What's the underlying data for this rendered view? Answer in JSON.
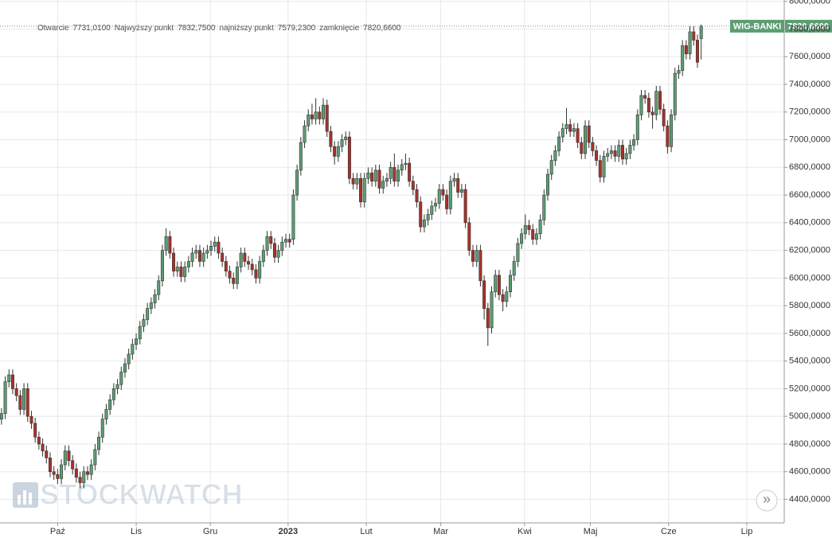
{
  "chart_data": {
    "type": "candlestick",
    "header": [
      {
        "label": "Otwarcie",
        "text": "7731,0100"
      },
      {
        "label": "Najwyższy punkt",
        "text": "7832,7500"
      },
      {
        "label": "najniższy punkt",
        "text": "7579,2300"
      },
      {
        "label": "zamknięcie",
        "text": "7820,6600"
      }
    ],
    "watermark": "STOCKWATCH",
    "scroll_button": "»",
    "up_color": "#5b9e73",
    "down_color": "#a8322a",
    "grid": true,
    "categories": [
      null,
      null,
      null,
      null,
      null,
      null,
      null,
      null,
      null,
      null,
      null,
      null,
      null,
      null,
      null,
      null,
      null,
      null,
      null,
      null,
      null,
      null,
      null,
      null,
      null,
      null,
      null,
      null,
      null,
      null,
      null,
      null,
      null,
      null,
      null,
      null,
      null,
      null,
      null,
      null,
      null,
      null,
      null,
      null,
      null,
      null,
      null,
      null,
      null,
      null,
      null,
      null,
      null,
      null,
      null,
      null,
      null,
      null,
      null,
      null,
      null,
      null,
      null,
      null,
      null,
      null,
      null,
      null,
      null,
      null,
      null,
      null,
      null,
      null,
      null,
      null,
      null,
      null,
      null,
      null,
      null,
      null,
      null,
      null,
      null,
      null,
      null,
      null,
      null,
      null,
      null,
      null,
      null,
      null,
      null,
      null,
      null,
      null,
      null,
      null,
      null,
      null,
      null,
      null,
      null,
      null,
      null,
      null,
      null,
      null,
      null,
      null,
      null,
      null,
      null,
      null,
      null,
      null,
      null,
      null,
      null,
      null,
      null,
      null,
      null,
      null,
      null,
      null,
      null,
      null,
      null,
      null,
      null,
      null,
      null,
      null,
      null,
      null,
      null,
      null,
      null,
      null,
      null,
      null,
      null,
      null,
      null,
      null,
      null,
      null,
      null,
      null,
      null,
      null,
      null,
      null,
      null,
      null,
      null,
      null,
      null,
      null,
      null,
      null,
      null,
      null,
      null,
      null,
      null,
      null,
      null,
      null,
      null,
      null,
      null,
      null,
      null,
      null,
      null,
      null,
      null,
      null,
      null,
      null,
      null,
      null,
      null,
      null
    ],
    "series": [
      {
        "name": "WIG-BANKI",
        "last_value_label": "7820,6600",
        "color": "#5b9e73",
        "open": [
          4980,
          5020,
          5250,
          5300,
          5200,
          5150,
          5050,
          5200,
          5000,
          4950,
          4850,
          4800,
          4750,
          4700,
          4600,
          4580,
          4550,
          4650,
          4750,
          4680,
          4620,
          4560,
          4520,
          4600,
          4580,
          4650,
          4760,
          4850,
          4980,
          5050,
          5120,
          5200,
          5230,
          5320,
          5380,
          5450,
          5520,
          5560,
          5650,
          5700,
          5780,
          5820,
          5880,
          5980,
          6200,
          6300,
          6180,
          6050,
          6080,
          6010,
          6080,
          6120,
          6180,
          6200,
          6120,
          6180,
          6200,
          6230,
          6260,
          6180,
          6120,
          6050,
          6000,
          5960,
          6080,
          6180,
          6120,
          6100,
          6060,
          6000,
          6120,
          6200,
          6300,
          6250,
          6150,
          6200,
          6260,
          6280,
          6280,
          6600,
          6780,
          6980,
          7100,
          7180,
          7150,
          7200,
          7150,
          7250,
          7060,
          6950,
          6880,
          6950,
          7000,
          7020,
          6720,
          6680,
          6720,
          6550,
          6720,
          6760,
          6700,
          6780,
          6650,
          6700,
          6720,
          6800,
          6700,
          6780,
          6820,
          6830,
          6700,
          6640,
          6550,
          6370,
          6420,
          6460,
          6520,
          6540,
          6640,
          6600,
          6500,
          6700,
          6720,
          6620,
          6640,
          6400,
          6200,
          6120,
          6200,
          5980,
          5780,
          5640,
          5900,
          6020,
          5880,
          5830,
          5900,
          6020,
          6120,
          6250,
          6320,
          6380,
          6350,
          6280,
          6320,
          6420,
          6600,
          6750,
          6850,
          6920,
          7020,
          7080,
          7110,
          7060,
          7080,
          6980,
          6900,
          7100,
          6980,
          6920,
          6850,
          6730,
          6880,
          6900,
          6920,
          6880,
          6960,
          6860,
          6900,
          6960,
          7000,
          7180,
          7320,
          7300,
          7200,
          7180,
          7350,
          7220,
          7100,
          6950,
          7180,
          7480,
          7500,
          7680,
          7620,
          7780,
          7720,
          7731.01
        ],
        "high": [
          5060,
          5290,
          5340,
          5340,
          5240,
          5190,
          5240,
          5240,
          5040,
          4990,
          4890,
          4840,
          4790,
          4740,
          4640,
          4620,
          4690,
          4790,
          4790,
          4720,
          4660,
          4600,
          4640,
          4640,
          4690,
          4800,
          4890,
          5020,
          5090,
          5160,
          5240,
          5270,
          5360,
          5420,
          5490,
          5560,
          5600,
          5690,
          5740,
          5820,
          5860,
          5920,
          6020,
          6240,
          6360,
          6340,
          6220,
          6120,
          6120,
          6120,
          6160,
          6220,
          6240,
          6240,
          6220,
          6240,
          6270,
          6300,
          6300,
          6220,
          6160,
          6090,
          6040,
          6120,
          6220,
          6220,
          6160,
          6140,
          6100,
          6160,
          6240,
          6340,
          6340,
          6290,
          6240,
          6300,
          6320,
          6320,
          6640,
          6820,
          7020,
          7140,
          7220,
          7260,
          7300,
          7240,
          7300,
          7290,
          7100,
          6990,
          6990,
          7040,
          7060,
          7060,
          6760,
          6760,
          6760,
          6760,
          6800,
          6800,
          6820,
          6820,
          6740,
          6760,
          6840,
          6900,
          6820,
          6860,
          6900,
          6870,
          6740,
          6680,
          6590,
          6460,
          6500,
          6560,
          6580,
          6680,
          6680,
          6640,
          6740,
          6760,
          6760,
          6680,
          6680,
          6440,
          6240,
          6240,
          6240,
          6020,
          5820,
          5940,
          6060,
          6060,
          5920,
          5940,
          6060,
          6160,
          6290,
          6360,
          6460,
          6420,
          6390,
          6360,
          6460,
          6640,
          6790,
          6890,
          6960,
          7060,
          7120,
          7230,
          7150,
          7120,
          7120,
          7020,
          7140,
          7140,
          7020,
          6960,
          6890,
          6920,
          6940,
          6960,
          6960,
          7000,
          7000,
          6940,
          7000,
          7040,
          7220,
          7360,
          7360,
          7340,
          7240,
          7390,
          7390,
          7260,
          7140,
          7220,
          7520,
          7540,
          7720,
          7720,
          7820,
          7820,
          7760,
          7832.75
        ],
        "low": [
          4940,
          4980,
          5210,
          5160,
          5110,
          5010,
          5010,
          4960,
          4910,
          4810,
          4760,
          4710,
          4660,
          4560,
          4540,
          4510,
          4510,
          4610,
          4640,
          4580,
          4520,
          4480,
          4480,
          4540,
          4540,
          4610,
          4720,
          4810,
          4940,
          5010,
          5080,
          5160,
          5190,
          5280,
          5340,
          5410,
          5480,
          5520,
          5610,
          5660,
          5740,
          5780,
          5840,
          5940,
          6160,
          6140,
          6010,
          6010,
          5970,
          5970,
          6040,
          6080,
          6140,
          6080,
          6080,
          6140,
          6160,
          6190,
          6140,
          6080,
          6010,
          5960,
          5920,
          5920,
          6040,
          6080,
          6060,
          6020,
          5960,
          5960,
          6080,
          6160,
          6210,
          6110,
          6110,
          6160,
          6220,
          6220,
          6240,
          6560,
          6740,
          6940,
          7060,
          7110,
          7110,
          7110,
          7110,
          7020,
          6910,
          6820,
          6840,
          6910,
          6960,
          6680,
          6640,
          6640,
          6510,
          6510,
          6680,
          6660,
          6660,
          6610,
          6610,
          6660,
          6680,
          6660,
          6660,
          6740,
          6780,
          6660,
          6600,
          6510,
          6330,
          6330,
          6380,
          6420,
          6480,
          6500,
          6560,
          6460,
          6460,
          6660,
          6580,
          6580,
          6360,
          6160,
          6080,
          6080,
          5940,
          5700,
          5510,
          5600,
          5860,
          5840,
          5760,
          5790,
          5860,
          5980,
          6080,
          6210,
          6280,
          6310,
          6240,
          6240,
          6280,
          6380,
          6560,
          6710,
          6810,
          6880,
          6980,
          7040,
          7020,
          7020,
          6940,
          6860,
          6860,
          6940,
          6880,
          6810,
          6690,
          6690,
          6840,
          6860,
          6840,
          6840,
          6820,
          6820,
          6860,
          6920,
          6960,
          7140,
          7260,
          7160,
          7080,
          7140,
          7180,
          7060,
          6900,
          6910,
          7140,
          7440,
          7460,
          7580,
          7580,
          7680,
          7520,
          7579.23
        ],
        "close": [
          5020,
          5250,
          5300,
          5200,
          5150,
          5050,
          5200,
          5000,
          4950,
          4850,
          4800,
          4750,
          4700,
          4600,
          4580,
          4550,
          4650,
          4750,
          4680,
          4620,
          4560,
          4520,
          4600,
          4580,
          4650,
          4760,
          4850,
          4980,
          5050,
          5120,
          5200,
          5230,
          5320,
          5380,
          5450,
          5520,
          5560,
          5650,
          5700,
          5780,
          5820,
          5880,
          5980,
          6200,
          6300,
          6180,
          6050,
          6080,
          6010,
          6080,
          6120,
          6180,
          6200,
          6120,
          6180,
          6200,
          6230,
          6260,
          6180,
          6120,
          6050,
          6000,
          5960,
          6080,
          6180,
          6120,
          6100,
          6060,
          6000,
          6120,
          6200,
          6300,
          6250,
          6150,
          6200,
          6260,
          6280,
          6260,
          6600,
          6780,
          6980,
          7100,
          7180,
          7150,
          7200,
          7150,
          7250,
          7060,
          6950,
          6880,
          6950,
          7000,
          7020,
          6720,
          6680,
          6720,
          6550,
          6720,
          6760,
          6700,
          6780,
          6650,
          6700,
          6720,
          6800,
          6700,
          6780,
          6820,
          6830,
          6700,
          6640,
          6550,
          6370,
          6420,
          6460,
          6520,
          6540,
          6640,
          6600,
          6500,
          6700,
          6720,
          6620,
          6640,
          6400,
          6200,
          6120,
          6200,
          5980,
          5780,
          5640,
          5900,
          6020,
          5880,
          5830,
          5900,
          6020,
          6120,
          6250,
          6320,
          6380,
          6350,
          6280,
          6320,
          6420,
          6600,
          6750,
          6850,
          6920,
          7020,
          7080,
          7110,
          7060,
          7080,
          6980,
          6900,
          7100,
          6980,
          6920,
          6850,
          6730,
          6880,
          6900,
          6920,
          6880,
          6960,
          6860,
          6900,
          6960,
          7000,
          7180,
          7320,
          7300,
          7200,
          7180,
          7350,
          7220,
          7100,
          6950,
          7180,
          7480,
          7500,
          7680,
          7620,
          7780,
          7720,
          7560,
          7820.66
        ]
      }
    ],
    "xlim": [
      -0.4,
      209.2
    ],
    "xticks": [
      {
        "value": 15,
        "label": "Paź"
      },
      {
        "value": 36,
        "label": "Lis"
      },
      {
        "value": 55.8,
        "label": "Gru"
      },
      {
        "value": 76.6,
        "label": "2023"
      },
      {
        "value": 97.5,
        "label": "Lut"
      },
      {
        "value": 117.4,
        "label": "Mar"
      },
      {
        "value": 139.8,
        "label": "Kwi"
      },
      {
        "value": 157.4,
        "label": "Maj"
      },
      {
        "value": 178.3,
        "label": "Cze"
      },
      {
        "value": 199.2,
        "label": "Lip"
      }
    ],
    "ylim": [
      4230,
      8010
    ],
    "yticks": [
      {
        "value": 4400,
        "label": "4400,0000"
      },
      {
        "value": 4600,
        "label": "4600,0000"
      },
      {
        "value": 4800,
        "label": "4800,0000"
      },
      {
        "value": 5000,
        "label": "5000,0000"
      },
      {
        "value": 5200,
        "label": "5200,0000"
      },
      {
        "value": 5400,
        "label": "5400,0000"
      },
      {
        "value": 5600,
        "label": "5600,0000"
      },
      {
        "value": 5800,
        "label": "5800,0000"
      },
      {
        "value": 6000,
        "label": "6000,0000"
      },
      {
        "value": 6200,
        "label": "6200,0000"
      },
      {
        "value": 6400,
        "label": "6400,0000"
      },
      {
        "value": 6600,
        "label": "6600,0000"
      },
      {
        "value": 6800,
        "label": "6800,0000"
      },
      {
        "value": 7000,
        "label": "7000,0000"
      },
      {
        "value": 7200,
        "label": "7200,0000"
      },
      {
        "value": 7400,
        "label": "7400,0000"
      },
      {
        "value": 7600,
        "label": "7600,0000"
      },
      {
        "value": 7800,
        "label": "7800,0000"
      },
      {
        "value": 8000,
        "label": "8000,0000"
      }
    ]
  }
}
